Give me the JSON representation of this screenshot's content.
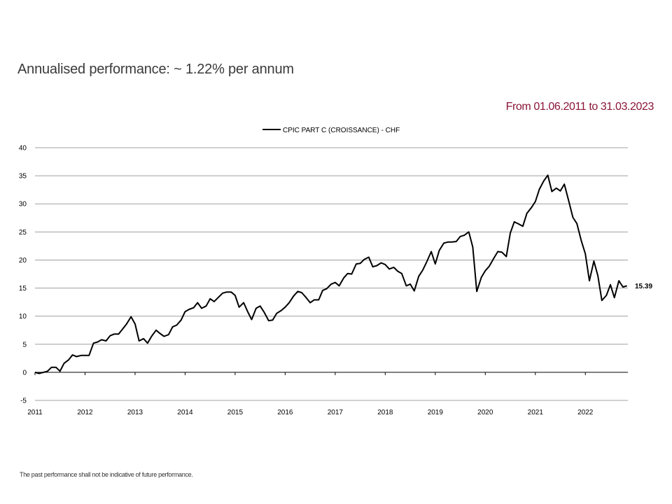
{
  "header": {
    "title": "Annualised performance: ~ 1.22% per annum",
    "period": "From 01.06.2011 to 31.03.2023"
  },
  "footer": {
    "disclaimer": "The past performance shall not be indicative of future performance."
  },
  "colors": {
    "period_text": "#8b1538",
    "line": "#000000",
    "grid": "#a0a0a0"
  },
  "chart_data": {
    "type": "line",
    "title": "",
    "xlabel": "",
    "ylabel": "",
    "xlim": [
      2011.0,
      2022.85
    ],
    "ylim": [
      -5,
      40
    ],
    "yticks": [
      -5,
      0,
      5,
      10,
      15,
      20,
      25,
      30,
      35,
      40
    ],
    "xticks": [
      "2011",
      "2012",
      "2013",
      "2014",
      "2015",
      "2016",
      "2017",
      "2018",
      "2019",
      "2020",
      "2021",
      "2022"
    ],
    "grid": true,
    "legend_position": "top-center",
    "end_label": "15.39",
    "series": [
      {
        "name": "CPIC PART C (CROISSANCE) - CHF",
        "x": [
          2011.0,
          2011.08,
          2011.17,
          2011.25,
          2011.33,
          2011.42,
          2011.5,
          2011.58,
          2011.67,
          2011.75,
          2011.83,
          2011.92,
          2012.0,
          2012.08,
          2012.17,
          2012.25,
          2012.33,
          2012.42,
          2012.5,
          2012.58,
          2012.67,
          2012.75,
          2012.83,
          2012.92,
          2013.0,
          2013.08,
          2013.17,
          2013.25,
          2013.33,
          2013.42,
          2013.5,
          2013.58,
          2013.67,
          2013.75,
          2013.83,
          2013.92,
          2014.0,
          2014.08,
          2014.17,
          2014.25,
          2014.33,
          2014.42,
          2014.5,
          2014.58,
          2014.67,
          2014.75,
          2014.83,
          2014.92,
          2015.0,
          2015.08,
          2015.17,
          2015.25,
          2015.33,
          2015.42,
          2015.5,
          2015.58,
          2015.67,
          2015.75,
          2015.83,
          2015.92,
          2016.0,
          2016.08,
          2016.17,
          2016.25,
          2016.33,
          2016.42,
          2016.5,
          2016.58,
          2016.67,
          2016.75,
          2016.83,
          2016.92,
          2017.0,
          2017.08,
          2017.17,
          2017.25,
          2017.33,
          2017.42,
          2017.5,
          2017.58,
          2017.67,
          2017.75,
          2017.83,
          2017.92,
          2018.0,
          2018.08,
          2018.17,
          2018.25,
          2018.33,
          2018.42,
          2018.5,
          2018.58,
          2018.67,
          2018.75,
          2018.83,
          2018.92,
          2019.0,
          2019.08,
          2019.17,
          2019.25,
          2019.33,
          2019.42,
          2019.5,
          2019.58,
          2019.67,
          2019.75,
          2019.83,
          2019.92,
          2020.0,
          2020.08,
          2020.17,
          2020.25,
          2020.33,
          2020.42,
          2020.5,
          2020.58,
          2020.67,
          2020.75,
          2020.83,
          2020.92,
          2021.0,
          2021.08,
          2021.17,
          2021.25,
          2021.33,
          2021.42,
          2021.5,
          2021.58,
          2021.67,
          2021.75,
          2021.83,
          2021.92,
          2022.0,
          2022.08,
          2022.17,
          2022.25,
          2022.33,
          2022.42,
          2022.5,
          2022.58,
          2022.67,
          2022.75,
          2022.83
        ],
        "values": [
          0.0,
          -0.2,
          0.0,
          0.2,
          0.9,
          0.9,
          0.2,
          1.6,
          2.2,
          3.1,
          2.8,
          3.0,
          3.0,
          3.0,
          5.2,
          5.4,
          5.8,
          5.6,
          6.5,
          6.8,
          6.8,
          7.7,
          8.6,
          9.9,
          8.6,
          5.6,
          6.0,
          5.2,
          6.4,
          7.5,
          6.9,
          6.4,
          6.7,
          8.1,
          8.4,
          9.3,
          10.8,
          11.2,
          11.5,
          12.4,
          11.4,
          11.8,
          13.1,
          12.6,
          13.4,
          14.1,
          14.3,
          14.3,
          13.7,
          11.6,
          12.4,
          10.8,
          9.4,
          11.4,
          11.8,
          10.7,
          9.2,
          9.3,
          10.5,
          11.0,
          11.6,
          12.4,
          13.6,
          14.4,
          14.2,
          13.3,
          12.4,
          12.9,
          12.9,
          14.6,
          14.9,
          15.7,
          16.0,
          15.4,
          16.8,
          17.6,
          17.5,
          19.3,
          19.4,
          20.1,
          20.5,
          18.8,
          19.0,
          19.5,
          19.2,
          18.4,
          18.7,
          18.0,
          17.6,
          15.4,
          15.7,
          14.5,
          17.1,
          18.2,
          19.7,
          21.5,
          19.3,
          21.7,
          23.0,
          23.2,
          23.2,
          23.3,
          24.2,
          24.4,
          25.0,
          22.3,
          14.4,
          16.9,
          18.1,
          18.9,
          20.3,
          21.5,
          21.4,
          20.6,
          24.8,
          26.8,
          26.4,
          26.0,
          28.3,
          29.3,
          30.4,
          32.6,
          34.1,
          35.1,
          32.2,
          32.8,
          32.3,
          33.5,
          30.4,
          27.6,
          26.5,
          23.4,
          21.1,
          16.3,
          19.8,
          17.2,
          12.8,
          13.7,
          15.6,
          13.3,
          16.3,
          15.2,
          15.39
        ]
      }
    ]
  }
}
